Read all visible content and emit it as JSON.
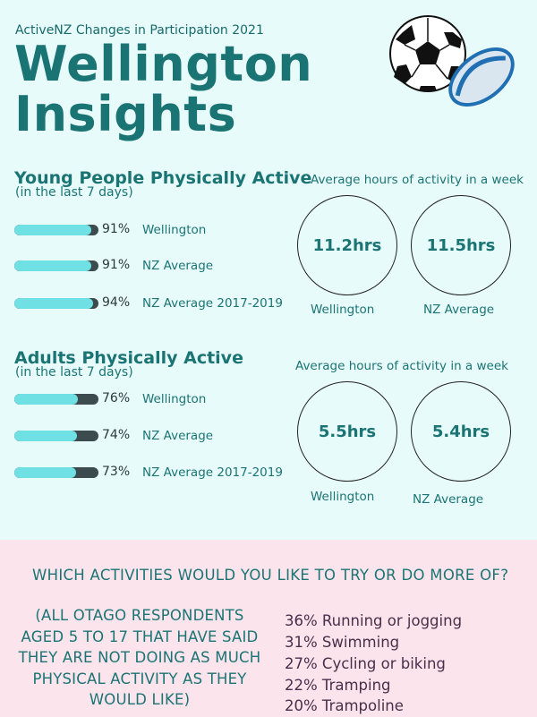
{
  "header": {
    "subtitle": "ActiveNZ Changes in Participation 2021",
    "title_line1": "Wellington",
    "title_line2": "Insights"
  },
  "young": {
    "heading": "Young People Physically Active",
    "subheading": "(in the last 7 days)",
    "avg_heading": "Average hours of activity in a week",
    "circles": [
      {
        "value": "11.2hrs",
        "label": "Wellington"
      },
      {
        "value": "11.5hrs",
        "label": "NZ Average"
      }
    ]
  },
  "adults": {
    "heading": "Adults Physically Active",
    "subheading": "(in the last 7 days)",
    "avg_heading": "Average hours of activity in a week",
    "circles": [
      {
        "value": "5.5hrs",
        "label": "Wellington"
      },
      {
        "value": "5.4hrs",
        "label": "NZ Average"
      }
    ]
  },
  "chart_data": [
    {
      "type": "bar",
      "categories": [
        "Wellington",
        "NZ Average",
        "NZ Average 2017-2019"
      ],
      "values": [
        91,
        91,
        94
      ],
      "value_labels": [
        "91%",
        "91%",
        "94%"
      ],
      "ylim": [
        0,
        100
      ]
    },
    {
      "type": "bar",
      "categories": [
        "Wellington",
        "NZ Average",
        "NZ Average 2017-2019"
      ],
      "values": [
        76,
        74,
        73
      ],
      "value_labels": [
        "76%",
        "74%",
        "73%"
      ],
      "ylim": [
        0,
        100
      ]
    }
  ],
  "activities": {
    "question": "WHICH ACTIVITIES WOULD YOU LIKE TO TRY OR DO MORE OF?",
    "note_lines": [
      "(ALL OTAGO RESPONDENTS",
      "AGED 5 TO 17 THAT HAVE SAID",
      "THEY ARE NOT DOING AS MUCH",
      "PHYSICAL ACTIVITY AS THEY",
      "WOULD LIKE)"
    ],
    "items": [
      "36% Running or jogging",
      "31% Swimming",
      "27% Cycling or biking",
      "22% Tramping",
      "20% Trampoline"
    ]
  },
  "colors": {
    "background_top": "#e8fbfb",
    "background_bottom": "#fce4ec",
    "teal_text": "#1b7474",
    "bar_fill": "#6fe0e3",
    "bar_track": "#3c4b4e",
    "activity_text": "#4a2f4a"
  },
  "icons": [
    "soccer-ball-icon",
    "rugby-ball-icon"
  ]
}
